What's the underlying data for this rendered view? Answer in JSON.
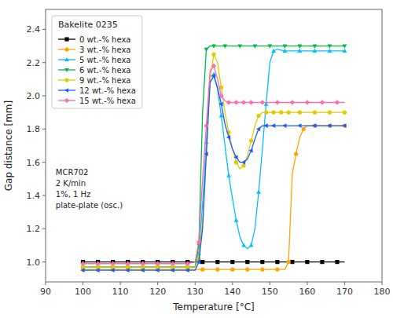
{
  "chart_data": {
    "type": "line",
    "title": "Bakelite 0235",
    "xlabel": "Temperature [°C]",
    "ylabel": "Gap distance [mm]",
    "annotation": "MCR702\n2 K/min\n1%, 1 Hz\nplate-plate (osc.)",
    "xlim": [
      90,
      180
    ],
    "ylim": [
      0.88,
      2.52
    ],
    "xticks": [
      90,
      100,
      110,
      120,
      130,
      140,
      150,
      160,
      170,
      180
    ],
    "yticks": [
      {
        "value": 1.0,
        "label": "1.0"
      },
      {
        "value": 1.2,
        "label": "1.2"
      },
      {
        "value": 1.4,
        "label": "1.4"
      },
      {
        "value": 1.6,
        "label": "1.6"
      },
      {
        "value": 1.8,
        "label": "1.8"
      },
      {
        "value": 2.0,
        "label": "2.0"
      },
      {
        "value": 2.2,
        "label": "2.2"
      },
      {
        "value": 2.4,
        "label": "2.4"
      }
    ],
    "grid": false,
    "legend": "upper left",
    "series": [
      {
        "name": "0 wt.-% hexa",
        "color": "#000000",
        "marker": "square",
        "x": [
          100,
          102,
          104,
          106,
          108,
          110,
          112,
          114,
          116,
          118,
          120,
          122,
          124,
          126,
          128,
          130,
          132,
          134,
          136,
          138,
          140,
          142,
          144,
          146,
          148,
          150,
          152,
          154,
          156,
          158,
          160,
          162,
          164,
          166,
          168,
          170
        ],
        "values": [
          1.0,
          1.0,
          1.0,
          1.0,
          1.0,
          1.0,
          1.0,
          1.0,
          1.0,
          1.0,
          1.0,
          1.0,
          1.0,
          1.0,
          1.0,
          1.0,
          1.0,
          1.0,
          1.0,
          1.0,
          1.0,
          1.0,
          1.0,
          1.0,
          1.0,
          1.0,
          1.0,
          1.0,
          1.0,
          1.0,
          1.0,
          1.0,
          1.0,
          1.0,
          1.0,
          1.0
        ]
      },
      {
        "name": "3 wt.-% hexa",
        "color": "#FFA500",
        "marker": "circle",
        "x": [
          100,
          102,
          104,
          106,
          108,
          110,
          112,
          114,
          116,
          118,
          120,
          122,
          124,
          126,
          128,
          130,
          132,
          134,
          136,
          138,
          140,
          142,
          144,
          146,
          148,
          150,
          152,
          154,
          155,
          156,
          157,
          158,
          159,
          160,
          162,
          164,
          166,
          168,
          170
        ],
        "values": [
          0.955,
          0.955,
          0.955,
          0.955,
          0.955,
          0.955,
          0.955,
          0.955,
          0.955,
          0.955,
          0.955,
          0.955,
          0.955,
          0.955,
          0.955,
          0.955,
          0.955,
          0.955,
          0.955,
          0.955,
          0.955,
          0.955,
          0.955,
          0.955,
          0.955,
          0.955,
          0.955,
          0.955,
          1.0,
          1.53,
          1.65,
          1.75,
          1.8,
          1.82,
          1.82,
          1.82,
          1.82,
          1.82,
          1.82
        ]
      },
      {
        "name": "5 wt.-% hexa",
        "color": "#00BFFF",
        "marker": "triangle-up",
        "x": [
          100,
          102,
          104,
          106,
          108,
          110,
          112,
          114,
          116,
          118,
          120,
          122,
          124,
          126,
          128,
          130,
          131,
          132,
          133,
          134,
          135,
          136,
          137,
          138,
          139,
          140,
          141,
          142,
          143,
          144,
          145,
          146,
          147,
          148,
          149,
          150,
          151,
          152,
          154,
          156,
          158,
          160,
          162,
          164,
          166,
          168,
          170
        ],
        "values": [
          0.97,
          0.97,
          0.97,
          0.97,
          0.97,
          0.97,
          0.97,
          0.97,
          0.97,
          0.97,
          0.97,
          0.97,
          0.97,
          0.97,
          0.97,
          0.97,
          1.05,
          1.35,
          1.72,
          2.11,
          2.13,
          2.04,
          1.88,
          1.7,
          1.52,
          1.38,
          1.25,
          1.15,
          1.1,
          1.08,
          1.1,
          1.2,
          1.42,
          1.68,
          1.95,
          2.2,
          2.27,
          2.28,
          2.27,
          2.27,
          2.27,
          2.27,
          2.27,
          2.27,
          2.27,
          2.27,
          2.27
        ]
      },
      {
        "name": "6 wt.-% hexa",
        "color": "#00BB44",
        "marker": "triangle-down",
        "x": [
          100,
          102,
          104,
          106,
          108,
          110,
          112,
          114,
          116,
          118,
          120,
          122,
          124,
          126,
          128,
          130,
          131,
          132,
          133,
          134,
          135,
          136,
          138,
          140,
          142,
          144,
          146,
          148,
          150,
          152,
          154,
          156,
          158,
          160,
          162,
          164,
          166,
          168,
          170
        ],
        "values": [
          0.97,
          0.97,
          0.97,
          0.97,
          0.97,
          0.97,
          0.97,
          0.97,
          0.97,
          0.97,
          0.97,
          0.97,
          0.97,
          0.97,
          0.97,
          0.97,
          1.1,
          1.9,
          2.28,
          2.3,
          2.3,
          2.3,
          2.3,
          2.3,
          2.3,
          2.3,
          2.3,
          2.3,
          2.3,
          2.3,
          2.3,
          2.3,
          2.3,
          2.3,
          2.3,
          2.3,
          2.3,
          2.3,
          2.3
        ]
      },
      {
        "name": "9 wt.-% hexa",
        "color": "#DDCC00",
        "marker": "circle",
        "x": [
          100,
          102,
          104,
          106,
          108,
          110,
          112,
          114,
          116,
          118,
          120,
          122,
          124,
          126,
          128,
          130,
          131,
          132,
          133,
          134,
          135,
          136,
          137,
          138,
          139,
          140,
          141,
          142,
          143,
          144,
          145,
          146,
          147,
          148,
          149,
          150,
          151,
          152,
          153,
          154,
          155,
          156,
          158,
          160,
          162,
          164,
          166,
          168,
          170
        ],
        "values": [
          0.97,
          0.97,
          0.97,
          0.97,
          0.97,
          0.97,
          0.97,
          0.97,
          0.97,
          0.97,
          0.97,
          0.97,
          0.97,
          0.97,
          0.97,
          0.97,
          1.02,
          1.25,
          1.65,
          2.1,
          2.25,
          2.2,
          2.05,
          1.9,
          1.78,
          1.68,
          1.6,
          1.56,
          1.58,
          1.64,
          1.73,
          1.82,
          1.88,
          1.9,
          1.9,
          1.9,
          1.9,
          1.9,
          1.9,
          1.9,
          1.9,
          1.9,
          1.9,
          1.9,
          1.9,
          1.9,
          1.9,
          1.9,
          1.9
        ]
      },
      {
        "name": "12 wt.-% hexa",
        "color": "#1E5AFF",
        "marker": "triangle-left",
        "x": [
          100,
          102,
          104,
          106,
          108,
          110,
          112,
          114,
          116,
          118,
          120,
          122,
          124,
          126,
          128,
          130,
          131,
          132,
          133,
          134,
          135,
          136,
          137,
          138,
          139,
          140,
          141,
          142,
          143,
          144,
          145,
          146,
          147,
          148,
          149,
          150,
          151,
          152,
          154,
          156,
          158,
          160,
          162,
          164,
          166,
          168,
          170
        ],
        "values": [
          0.95,
          0.95,
          0.95,
          0.95,
          0.95,
          0.95,
          0.95,
          0.95,
          0.95,
          0.95,
          0.95,
          0.95,
          0.95,
          0.95,
          0.95,
          0.95,
          1.0,
          1.2,
          1.65,
          2.08,
          2.12,
          2.05,
          1.95,
          1.83,
          1.75,
          1.68,
          1.63,
          1.6,
          1.6,
          1.62,
          1.67,
          1.74,
          1.8,
          1.82,
          1.82,
          1.82,
          1.82,
          1.82,
          1.82,
          1.82,
          1.82,
          1.82,
          1.82,
          1.82,
          1.82,
          1.82,
          1.82
        ]
      },
      {
        "name": "15 wt.-% hexa",
        "color": "#FF69B4",
        "marker": "diamond",
        "x": [
          100,
          102,
          104,
          106,
          108,
          110,
          112,
          114,
          116,
          118,
          120,
          122,
          124,
          126,
          128,
          130,
          131,
          132,
          133,
          134,
          135,
          136,
          137,
          138,
          139,
          140,
          141,
          142,
          143,
          144,
          145,
          146,
          148,
          150,
          152,
          154,
          156,
          158,
          160,
          162,
          164,
          166,
          168,
          170
        ],
        "values": [
          0.99,
          0.99,
          0.99,
          0.99,
          0.99,
          0.99,
          0.99,
          0.99,
          0.99,
          0.99,
          0.99,
          0.99,
          0.99,
          0.99,
          0.99,
          1.0,
          1.12,
          1.5,
          1.82,
          2.15,
          2.18,
          2.1,
          2.0,
          1.97,
          1.96,
          1.96,
          1.96,
          1.96,
          1.96,
          1.96,
          1.96,
          1.96,
          1.96,
          1.96,
          1.96,
          1.96,
          1.96,
          1.96,
          1.96,
          1.96,
          1.96,
          1.96,
          1.96,
          1.96
        ]
      }
    ]
  }
}
